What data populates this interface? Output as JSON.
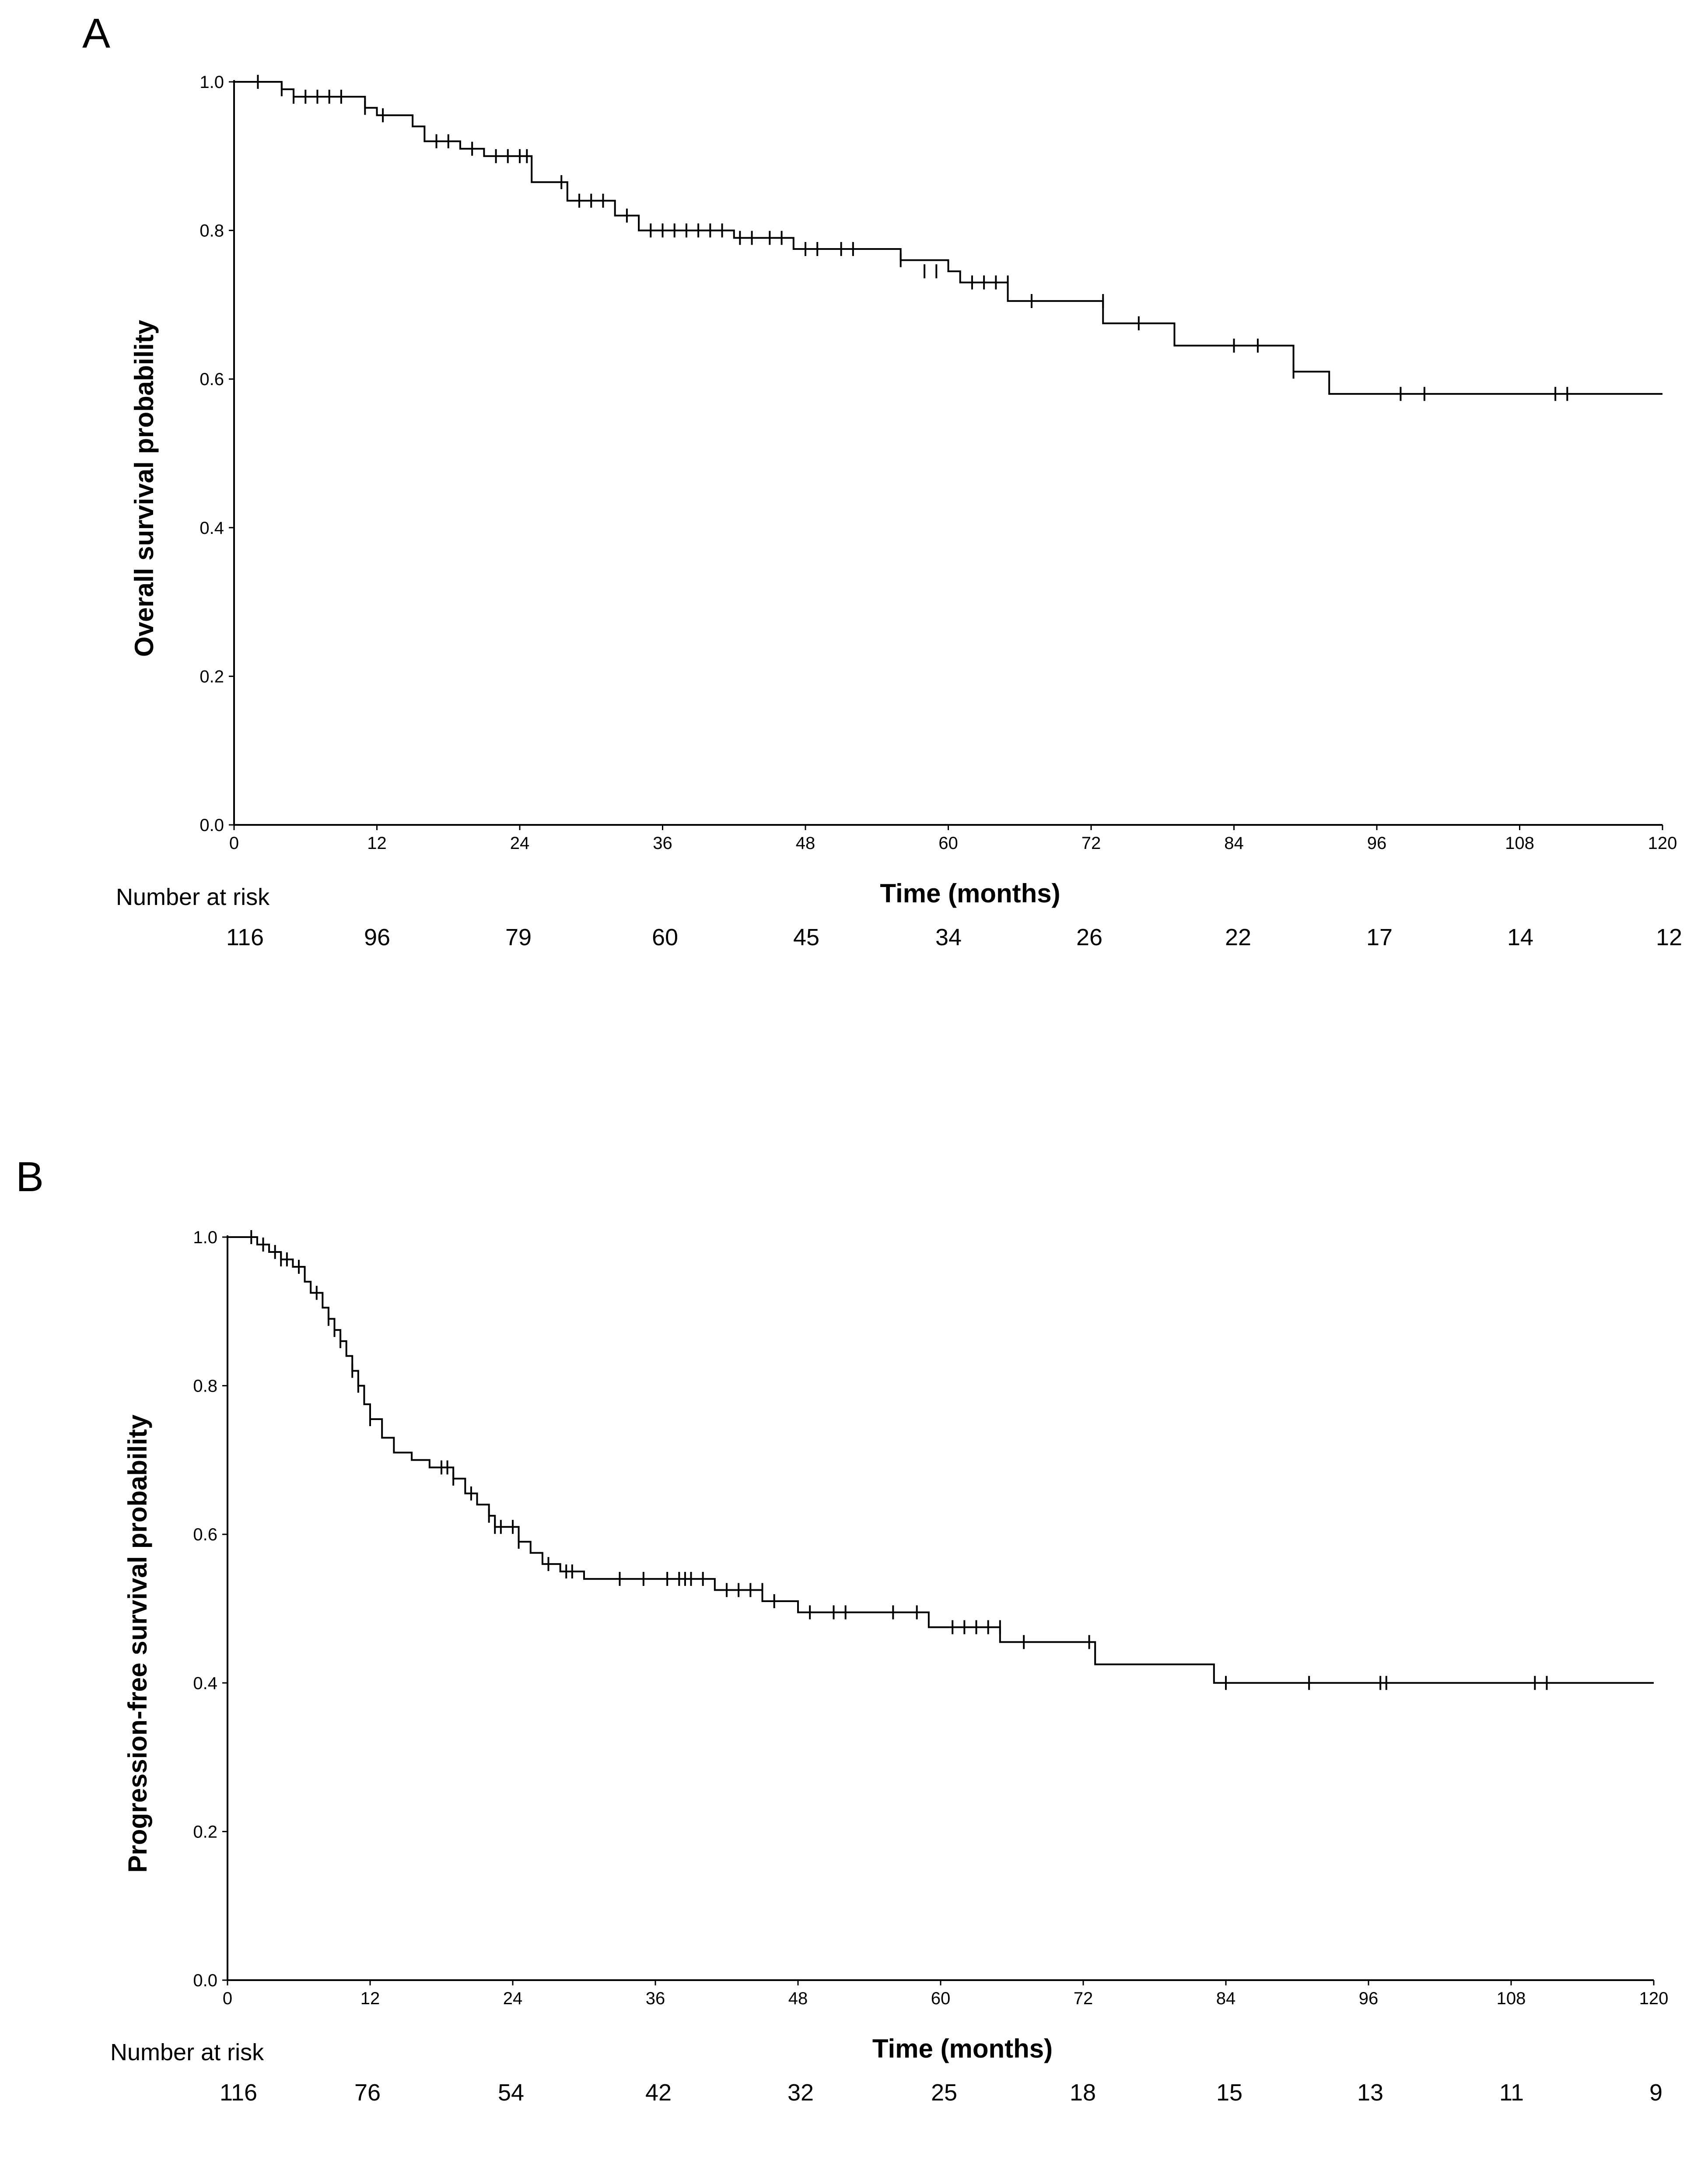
{
  "panels": [
    {
      "label": "A"
    },
    {
      "label": "B"
    }
  ],
  "chart_data": [
    {
      "type": "line",
      "step": true,
      "xlabel": "Time (months)",
      "ylabel": "Overall survival probability",
      "xlim": [
        0,
        120
      ],
      "ylim": [
        0,
        1.0
      ],
      "x_ticks": [
        "0",
        "12",
        "24",
        "36",
        "48",
        "60",
        "72",
        "84",
        "96",
        "108",
        "120"
      ],
      "y_ticks": [
        "0.0",
        "0.2",
        "0.4",
        "0.6",
        "0.8",
        "1.0"
      ],
      "grid": false,
      "risk_table": {
        "label": "Number at risk",
        "values": [
          "116",
          "96",
          "79",
          "60",
          "45",
          "34",
          "26",
          "22",
          "17",
          "14",
          "12"
        ]
      },
      "series": [
        {
          "steps": [
            [
              0,
              1.0
            ],
            [
              4,
              0.99
            ],
            [
              5,
              0.98
            ],
            [
              11,
              0.965
            ],
            [
              12,
              0.955
            ],
            [
              15,
              0.94
            ],
            [
              16,
              0.92
            ],
            [
              19,
              0.91
            ],
            [
              21,
              0.9
            ],
            [
              25,
              0.865
            ],
            [
              28,
              0.84
            ],
            [
              32,
              0.82
            ],
            [
              34,
              0.8
            ],
            [
              42,
              0.79
            ],
            [
              47,
              0.775
            ],
            [
              56,
              0.76
            ],
            [
              60,
              0.745
            ],
            [
              61,
              0.73
            ],
            [
              65,
              0.705
            ],
            [
              73,
              0.675
            ],
            [
              79,
              0.645
            ],
            [
              89,
              0.61
            ],
            [
              92,
              0.58
            ],
            [
              120,
              0.58
            ]
          ],
          "censored": [
            [
              2,
              1.0
            ],
            [
              4,
              0.99
            ],
            [
              5,
              0.98
            ],
            [
              6,
              0.98
            ],
            [
              7,
              0.98
            ],
            [
              8,
              0.98
            ],
            [
              9,
              0.98
            ],
            [
              11,
              0.965
            ],
            [
              12.5,
              0.955
            ],
            [
              17,
              0.92
            ],
            [
              18,
              0.92
            ],
            [
              20,
              0.91
            ],
            [
              22,
              0.9
            ],
            [
              23,
              0.9
            ],
            [
              24,
              0.9
            ],
            [
              24.6,
              0.9
            ],
            [
              27.5,
              0.865
            ],
            [
              29,
              0.84
            ],
            [
              30,
              0.84
            ],
            [
              31,
              0.84
            ],
            [
              33,
              0.82
            ],
            [
              35,
              0.8
            ],
            [
              36,
              0.8
            ],
            [
              37,
              0.8
            ],
            [
              38,
              0.8
            ],
            [
              39,
              0.8
            ],
            [
              40,
              0.8
            ],
            [
              41,
              0.8
            ],
            [
              42.5,
              0.79
            ],
            [
              43.5,
              0.79
            ],
            [
              45,
              0.79
            ],
            [
              46,
              0.79
            ],
            [
              48,
              0.775
            ],
            [
              49,
              0.775
            ],
            [
              51,
              0.775
            ],
            [
              52,
              0.775
            ],
            [
              56,
              0.76
            ],
            [
              58,
              0.745
            ],
            [
              59,
              0.745
            ],
            [
              62,
              0.73
            ],
            [
              63,
              0.73
            ],
            [
              64,
              0.73
            ],
            [
              65,
              0.73
            ],
            [
              67,
              0.705
            ],
            [
              73,
              0.705
            ],
            [
              76,
              0.675
            ],
            [
              84,
              0.645
            ],
            [
              86,
              0.645
            ],
            [
              89,
              0.61
            ],
            [
              98,
              0.58
            ],
            [
              100,
              0.58
            ],
            [
              111,
              0.58
            ],
            [
              112,
              0.58
            ]
          ]
        }
      ]
    },
    {
      "type": "line",
      "step": true,
      "xlabel": "Time (months)",
      "ylabel": "Progression-free survival probability",
      "xlim": [
        0,
        120
      ],
      "ylim": [
        0,
        1.0
      ],
      "x_ticks": [
        "0",
        "12",
        "24",
        "36",
        "48",
        "60",
        "72",
        "84",
        "96",
        "108",
        "120"
      ],
      "y_ticks": [
        "0.0",
        "0.2",
        "0.4",
        "0.6",
        "0.8",
        "1.0"
      ],
      "grid": false,
      "risk_table": {
        "label": "Number at risk",
        "values": [
          "116",
          "76",
          "54",
          "42",
          "32",
          "25",
          "18",
          "15",
          "13",
          "11",
          "9"
        ]
      },
      "series": [
        {
          "steps": [
            [
              0,
              1.0
            ],
            [
              2.5,
              0.99
            ],
            [
              3.5,
              0.98
            ],
            [
              4.5,
              0.97
            ],
            [
              5.5,
              0.96
            ],
            [
              6.5,
              0.94
            ],
            [
              7,
              0.925
            ],
            [
              8,
              0.905
            ],
            [
              8.5,
              0.89
            ],
            [
              9,
              0.875
            ],
            [
              9.5,
              0.86
            ],
            [
              10,
              0.84
            ],
            [
              10.5,
              0.82
            ],
            [
              11,
              0.8
            ],
            [
              11.5,
              0.775
            ],
            [
              12,
              0.755
            ],
            [
              13,
              0.73
            ],
            [
              14,
              0.71
            ],
            [
              15.5,
              0.7
            ],
            [
              17,
              0.69
            ],
            [
              19,
              0.675
            ],
            [
              20,
              0.655
            ],
            [
              21,
              0.64
            ],
            [
              22,
              0.625
            ],
            [
              22.5,
              0.61
            ],
            [
              24.5,
              0.59
            ],
            [
              25.5,
              0.575
            ],
            [
              26.5,
              0.56
            ],
            [
              28,
              0.55
            ],
            [
              30,
              0.54
            ],
            [
              41,
              0.525
            ],
            [
              45,
              0.51
            ],
            [
              48,
              0.495
            ],
            [
              59,
              0.475
            ],
            [
              65,
              0.455
            ],
            [
              73,
              0.425
            ],
            [
              83,
              0.4
            ],
            [
              120,
              0.4
            ]
          ],
          "censored": [
            [
              2,
              1.0
            ],
            [
              3,
              0.99
            ],
            [
              4,
              0.98
            ],
            [
              4.5,
              0.97
            ],
            [
              5,
              0.97
            ],
            [
              6,
              0.96
            ],
            [
              7.5,
              0.925
            ],
            [
              8.5,
              0.89
            ],
            [
              9,
              0.875
            ],
            [
              9.5,
              0.86
            ],
            [
              10.5,
              0.82
            ],
            [
              11,
              0.8
            ],
            [
              12,
              0.755
            ],
            [
              18,
              0.69
            ],
            [
              18.5,
              0.69
            ],
            [
              19,
              0.675
            ],
            [
              20.5,
              0.655
            ],
            [
              22,
              0.625
            ],
            [
              22.5,
              0.61
            ],
            [
              23,
              0.61
            ],
            [
              24,
              0.61
            ],
            [
              24.5,
              0.59
            ],
            [
              27,
              0.56
            ],
            [
              28.5,
              0.55
            ],
            [
              29,
              0.55
            ],
            [
              33,
              0.54
            ],
            [
              35,
              0.54
            ],
            [
              37,
              0.54
            ],
            [
              38,
              0.54
            ],
            [
              38.5,
              0.54
            ],
            [
              39,
              0.54
            ],
            [
              40,
              0.54
            ],
            [
              42,
              0.525
            ],
            [
              43,
              0.525
            ],
            [
              44,
              0.525
            ],
            [
              45,
              0.525
            ],
            [
              46,
              0.51
            ],
            [
              49,
              0.495
            ],
            [
              51,
              0.495
            ],
            [
              52,
              0.495
            ],
            [
              56,
              0.495
            ],
            [
              58,
              0.495
            ],
            [
              61,
              0.475
            ],
            [
              62,
              0.475
            ],
            [
              63,
              0.475
            ],
            [
              64,
              0.475
            ],
            [
              65,
              0.475
            ],
            [
              67,
              0.455
            ],
            [
              72.5,
              0.455
            ],
            [
              84,
              0.4
            ],
            [
              91,
              0.4
            ],
            [
              97,
              0.4
            ],
            [
              97.5,
              0.4
            ],
            [
              110,
              0.4
            ],
            [
              111,
              0.4
            ]
          ]
        }
      ]
    }
  ]
}
